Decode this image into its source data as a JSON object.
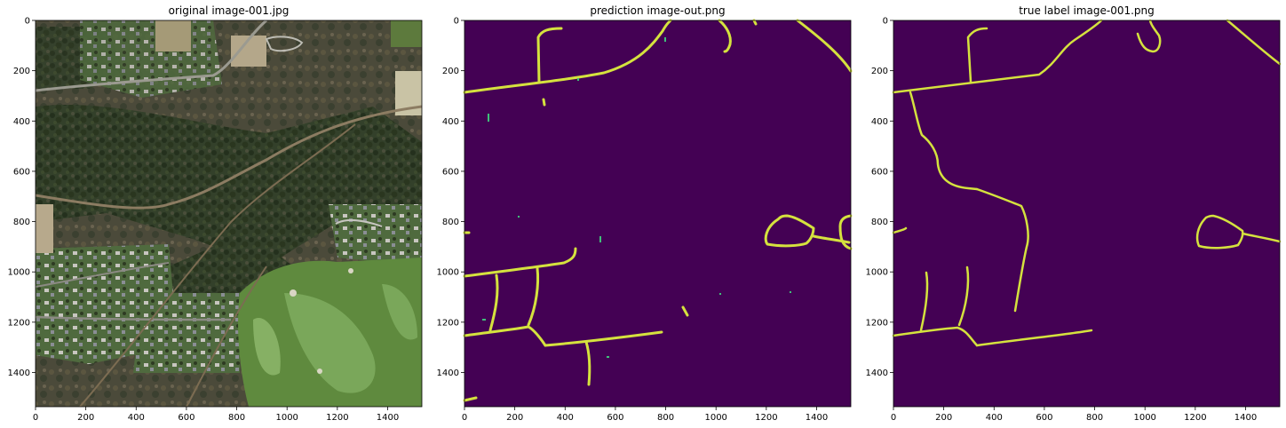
{
  "figure": {
    "panels": [
      {
        "title": "original image-001.jpg",
        "kind": "satellite-photo",
        "x_ticks": [
          "0",
          "200",
          "400",
          "600",
          "800",
          "1000",
          "1200",
          "1400"
        ],
        "y_ticks": [
          "0",
          "200",
          "400",
          "600",
          "800",
          "1000",
          "1200",
          "1400"
        ]
      },
      {
        "title": "prediction image-out.png",
        "kind": "road-mask",
        "x_ticks": [
          "0",
          "200",
          "400",
          "600",
          "800",
          "1000",
          "1200",
          "1400"
        ],
        "y_ticks": [
          "0",
          "200",
          "400",
          "600",
          "800",
          "1000",
          "1200",
          "1400"
        ]
      },
      {
        "title": "true label image-001.png",
        "kind": "road-mask",
        "x_ticks": [
          "0",
          "200",
          "400",
          "600",
          "800",
          "1000",
          "1200",
          "1400"
        ],
        "y_ticks": [
          "0",
          "200",
          "400",
          "600",
          "800",
          "1000",
          "1200",
          "1400"
        ]
      }
    ],
    "image_extent": [
      0,
      1536
    ],
    "colors": {
      "mask_background": "#440154",
      "mask_road": "#d5e23e",
      "mask_edge": "#3fbf7a",
      "forest": "#2f3b24",
      "field": "#6d7a45",
      "golf_green": "#6e9a4a"
    }
  }
}
